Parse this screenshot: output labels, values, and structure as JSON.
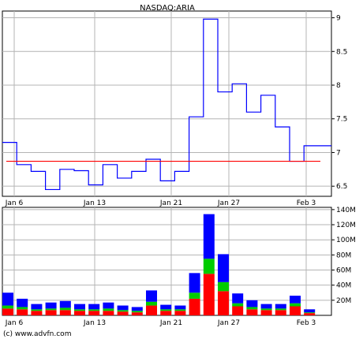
{
  "chart_data": [
    {
      "type": "line",
      "title": "NASDAQ:ARIA",
      "x_tick_labels": [
        "Jan 6",
        "Jan 13",
        "Jan 21",
        "Jan 27",
        "Feb 3"
      ],
      "y_tick_labels": [
        "9",
        "8.5",
        "8",
        "7.5",
        "7",
        "6.5"
      ],
      "y_ticks": [
        9,
        8.5,
        8,
        7.5,
        7,
        6.5
      ],
      "ylim": [
        6.35,
        9.1
      ],
      "grid": true,
      "series": [
        {
          "step": true,
          "color": "#0000ff",
          "values": [
            7.15,
            6.82,
            6.72,
            6.45,
            6.75,
            6.73,
            6.52,
            6.82,
            6.62,
            6.72,
            6.9,
            6.58,
            6.72,
            7.53,
            8.98,
            7.9,
            8.02,
            7.6,
            7.85,
            7.38,
            6.87,
            7.1,
            7.1
          ]
        },
        {
          "reference_line": true,
          "color": "#ff0000",
          "value": 6.87
        }
      ]
    },
    {
      "type": "bar",
      "stacked": true,
      "x_tick_labels": [
        "Jan 6",
        "Jan 13",
        "Jan 21",
        "Jan 27",
        "Feb 3"
      ],
      "y_tick_labels": [
        "140M",
        "120M",
        "100M",
        "80M",
        "60M",
        "40M",
        "20M"
      ],
      "y_ticks": [
        140,
        120,
        100,
        80,
        60,
        40,
        20
      ],
      "ylim": [
        0,
        143
      ],
      "unit": "M",
      "grid": true,
      "series": [
        {
          "color": "#ff0000",
          "values": [
            9,
            8,
            6,
            7,
            7,
            6,
            6,
            6,
            5,
            4,
            13,
            6,
            6,
            22,
            55,
            32,
            12,
            8,
            7,
            7,
            12,
            3
          ]
        },
        {
          "color": "#00cc00",
          "values": [
            4,
            3,
            2,
            2,
            3,
            2,
            2,
            3,
            2,
            2,
            5,
            2,
            2,
            8,
            20,
            12,
            4,
            3,
            2,
            2,
            4,
            1
          ]
        },
        {
          "color": "#0000ff",
          "values": [
            17,
            11,
            7,
            8,
            9,
            7,
            7,
            8,
            6,
            5,
            15,
            6,
            5,
            26,
            59,
            37,
            13,
            9,
            6,
            6,
            10,
            4
          ]
        }
      ]
    }
  ],
  "footer": "(c) www.advfn.com"
}
